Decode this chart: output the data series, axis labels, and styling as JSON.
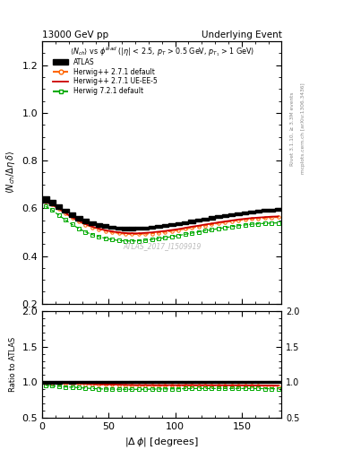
{
  "title_left": "13000 GeV pp",
  "title_right": "Underlying Event",
  "xlabel": "|\\u0394\\u03c6| [degrees]",
  "ylabel_main": "\\u27e8N_ch / \\u0394\\u03b7 delta\\u27e9",
  "ylabel_ratio": "Ratio to ATLAS",
  "watermark": "ATLAS_2017_I1509919",
  "xlim": [
    0,
    180
  ],
  "ylim_main": [
    0.2,
    1.3
  ],
  "ylim_ratio": [
    0.5,
    2.0
  ],
  "yticks_main": [
    0.2,
    0.4,
    0.6,
    0.8,
    1.0,
    1.2
  ],
  "yticks_ratio": [
    0.5,
    1.0,
    1.5,
    2.0
  ],
  "xticks": [
    0,
    50,
    100,
    150
  ],
  "herwig271_default_color": "#ff6600",
  "herwig271_uee5_color": "#cc0000",
  "herwig721_default_color": "#00aa00",
  "n_points": 36,
  "dphi_main": [
    2.5,
    7.5,
    12.5,
    17.5,
    22.5,
    27.5,
    32.5,
    37.5,
    42.5,
    47.5,
    52.5,
    57.5,
    62.5,
    67.5,
    72.5,
    77.5,
    82.5,
    87.5,
    92.5,
    97.5,
    102.5,
    107.5,
    112.5,
    117.5,
    122.5,
    127.5,
    132.5,
    137.5,
    142.5,
    147.5,
    152.5,
    157.5,
    162.5,
    167.5,
    172.5,
    177.5
  ],
  "atlas_values": [
    0.637,
    0.625,
    0.607,
    0.59,
    0.573,
    0.558,
    0.547,
    0.538,
    0.531,
    0.525,
    0.52,
    0.517,
    0.515,
    0.515,
    0.516,
    0.518,
    0.52,
    0.524,
    0.527,
    0.531,
    0.536,
    0.54,
    0.545,
    0.55,
    0.555,
    0.56,
    0.565,
    0.57,
    0.574,
    0.578,
    0.582,
    0.585,
    0.588,
    0.591,
    0.593,
    0.595
  ],
  "atlas_errors": [
    0.012,
    0.011,
    0.01,
    0.009,
    0.009,
    0.008,
    0.008,
    0.007,
    0.007,
    0.007,
    0.006,
    0.006,
    0.006,
    0.006,
    0.006,
    0.006,
    0.006,
    0.006,
    0.006,
    0.006,
    0.006,
    0.006,
    0.006,
    0.006,
    0.006,
    0.006,
    0.006,
    0.006,
    0.006,
    0.006,
    0.006,
    0.006,
    0.006,
    0.006,
    0.006,
    0.006
  ],
  "hw271def_values": [
    0.628,
    0.615,
    0.597,
    0.578,
    0.56,
    0.544,
    0.531,
    0.52,
    0.512,
    0.505,
    0.499,
    0.495,
    0.492,
    0.491,
    0.491,
    0.492,
    0.494,
    0.497,
    0.5,
    0.504,
    0.508,
    0.513,
    0.518,
    0.522,
    0.527,
    0.532,
    0.537,
    0.541,
    0.545,
    0.549,
    0.552,
    0.555,
    0.557,
    0.559,
    0.561,
    0.562
  ],
  "hw271uee5_values": [
    0.628,
    0.615,
    0.598,
    0.58,
    0.562,
    0.547,
    0.534,
    0.523,
    0.515,
    0.508,
    0.503,
    0.499,
    0.496,
    0.495,
    0.495,
    0.497,
    0.499,
    0.502,
    0.505,
    0.509,
    0.513,
    0.518,
    0.523,
    0.527,
    0.532,
    0.536,
    0.541,
    0.545,
    0.549,
    0.553,
    0.556,
    0.559,
    0.561,
    0.563,
    0.565,
    0.566
  ],
  "hw721def_values": [
    0.608,
    0.592,
    0.571,
    0.551,
    0.532,
    0.515,
    0.501,
    0.49,
    0.481,
    0.474,
    0.469,
    0.465,
    0.463,
    0.463,
    0.464,
    0.466,
    0.469,
    0.473,
    0.477,
    0.481,
    0.486,
    0.491,
    0.496,
    0.501,
    0.506,
    0.51,
    0.515,
    0.519,
    0.523,
    0.527,
    0.53,
    0.533,
    0.535,
    0.537,
    0.538,
    0.539
  ]
}
